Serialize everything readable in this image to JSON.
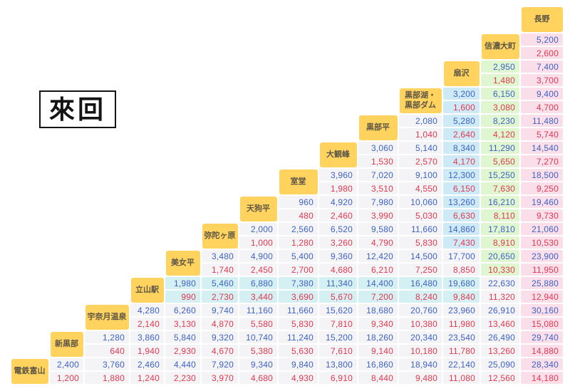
{
  "title": "來回",
  "stations": [
    "電鉄富山",
    "新黒部",
    "宇奈月温泉",
    "立山駅",
    "美女平",
    "弥陀ヶ原",
    "天狗平",
    "室堂",
    "大観峰",
    "黒部平",
    "黒部湖・\n黒部ダム",
    "扇沢",
    "信濃大町",
    "長野"
  ],
  "rows": [
    {
      "station": "長野",
      "fares": []
    },
    {
      "station": "信濃大町",
      "fares": [
        {
          "adult": "5,200",
          "child": "2,600"
        }
      ]
    },
    {
      "station": "扇沢",
      "fares": [
        {
          "adult": "2,950",
          "child": "1,480"
        },
        {
          "adult": "7,400",
          "child": "3,700"
        }
      ]
    },
    {
      "station": "黒部湖・\n黒部ダム",
      "fares": [
        {
          "adult": "3,200",
          "child": "1,600"
        },
        {
          "adult": "6,150",
          "child": "3,080"
        },
        {
          "adult": "9,400",
          "child": "4,700"
        }
      ]
    },
    {
      "station": "黒部平",
      "fares": [
        {
          "adult": "2,080",
          "child": "1,040"
        },
        {
          "adult": "5,280",
          "child": "2,640"
        },
        {
          "adult": "8,230",
          "child": "4,120"
        },
        {
          "adult": "11,480",
          "child": "5,740"
        }
      ]
    },
    {
      "station": "大観峰",
      "fares": [
        {
          "adult": "3,060",
          "child": "1,530"
        },
        {
          "adult": "5,140",
          "child": "2,570"
        },
        {
          "adult": "8,340",
          "child": "4,170"
        },
        {
          "adult": "11,290",
          "child": "5,650"
        },
        {
          "adult": "14,540",
          "child": "7,270"
        }
      ]
    },
    {
      "station": "室堂",
      "fares": [
        {
          "adult": "3,960",
          "child": "1,980"
        },
        {
          "adult": "7,020",
          "child": "3,510"
        },
        {
          "adult": "9,100",
          "child": "4,550"
        },
        {
          "adult": "12,300",
          "child": "6,150"
        },
        {
          "adult": "15,250",
          "child": "7,630"
        },
        {
          "adult": "18,500",
          "child": "9,250"
        }
      ]
    },
    {
      "station": "天狗平",
      "fares": [
        {
          "adult": "960",
          "child": "480"
        },
        {
          "adult": "4,920",
          "child": "2,460"
        },
        {
          "adult": "7,980",
          "child": "3,990"
        },
        {
          "adult": "10,060",
          "child": "5,030"
        },
        {
          "adult": "13,260",
          "child": "6,630"
        },
        {
          "adult": "16,210",
          "child": "8,110"
        },
        {
          "adult": "19,460",
          "child": "9,730"
        }
      ]
    },
    {
      "station": "弥陀ヶ原",
      "fares": [
        {
          "adult": "2,000",
          "child": "1,000"
        },
        {
          "adult": "2,560",
          "child": "1,280"
        },
        {
          "adult": "6,520",
          "child": "3,260"
        },
        {
          "adult": "9,580",
          "child": "4,790"
        },
        {
          "adult": "11,660",
          "child": "5,830"
        },
        {
          "adult": "14,860",
          "child": "7,430"
        },
        {
          "adult": "17,810",
          "child": "8,910"
        },
        {
          "adult": "21,060",
          "child": "10,530"
        }
      ]
    },
    {
      "station": "美女平",
      "fares": [
        {
          "adult": "3,480",
          "child": "1,740"
        },
        {
          "adult": "4,900",
          "child": "2,450"
        },
        {
          "adult": "5,400",
          "child": "2,700"
        },
        {
          "adult": "9,360",
          "child": "4,680"
        },
        {
          "adult": "12,420",
          "child": "6,210"
        },
        {
          "adult": "14,500",
          "child": "7,250"
        },
        {
          "adult": "17,700",
          "child": "8,850"
        },
        {
          "adult": "20,650",
          "child": "10,330"
        },
        {
          "adult": "23,900",
          "child": "11,950"
        }
      ]
    },
    {
      "station": "立山駅",
      "fares": [
        {
          "adult": "1,980",
          "child": "990"
        },
        {
          "adult": "5,460",
          "child": "2,730"
        },
        {
          "adult": "6,880",
          "child": "3,440"
        },
        {
          "adult": "7,380",
          "child": "3,690"
        },
        {
          "adult": "11,340",
          "child": "5,670"
        },
        {
          "adult": "14,400",
          "child": "7,200"
        },
        {
          "adult": "16,480",
          "child": "8,240"
        },
        {
          "adult": "19,680",
          "child": "9,840"
        },
        {
          "adult": "22,630",
          "child": "11,320"
        },
        {
          "adult": "25,880",
          "child": "12,940"
        }
      ]
    },
    {
      "station": "宇奈月温泉",
      "fares": [
        {
          "adult": "4,280",
          "child": "2,140"
        },
        {
          "adult": "6,260",
          "child": "3,130"
        },
        {
          "adult": "9,740",
          "child": "4,870"
        },
        {
          "adult": "11,160",
          "child": "5,580"
        },
        {
          "adult": "11,660",
          "child": "5,830"
        },
        {
          "adult": "15,620",
          "child": "7,810"
        },
        {
          "adult": "18,680",
          "child": "9,340"
        },
        {
          "adult": "20,760",
          "child": "10,380"
        },
        {
          "adult": "23,960",
          "child": "11,980"
        },
        {
          "adult": "26,910",
          "child": "13,460"
        },
        {
          "adult": "30,160",
          "child": "15,080"
        }
      ]
    },
    {
      "station": "新黒部",
      "fares": [
        {
          "adult": "1,280",
          "child": "640"
        },
        {
          "adult": "3,860",
          "child": "1,940"
        },
        {
          "adult": "5,840",
          "child": "2,930"
        },
        {
          "adult": "9,320",
          "child": "4,670"
        },
        {
          "adult": "10,740",
          "child": "5,380"
        },
        {
          "adult": "11,240",
          "child": "5,630"
        },
        {
          "adult": "15,200",
          "child": "7,610"
        },
        {
          "adult": "18,260",
          "child": "9,140"
        },
        {
          "adult": "20,340",
          "child": "10,180"
        },
        {
          "adult": "23,540",
          "child": "11,780"
        },
        {
          "adult": "26,490",
          "child": "13,260"
        },
        {
          "adult": "29,740",
          "child": "14,880"
        }
      ]
    },
    {
      "station": "電鉄富山",
      "fares": [
        {
          "adult": "2,400",
          "child": "1,200"
        },
        {
          "adult": "3,760",
          "child": "1,880"
        },
        {
          "adult": "2,460",
          "child": "1,240"
        },
        {
          "adult": "4,440",
          "child": "2,230"
        },
        {
          "adult": "7,920",
          "child": "3,970"
        },
        {
          "adult": "9,340",
          "child": "4,680"
        },
        {
          "adult": "9,840",
          "child": "4,930"
        },
        {
          "adult": "13,800",
          "child": "6,910"
        },
        {
          "adult": "16,860",
          "child": "8,440"
        },
        {
          "adult": "18,940",
          "child": "9,480"
        },
        {
          "adult": "22,140",
          "child": "11,080"
        },
        {
          "adult": "25,090",
          "child": "12,560"
        },
        {
          "adult": "28,340",
          "child": "14,180"
        }
      ]
    }
  ],
  "colors": {
    "header_bg": "#FFD35E",
    "header_text": "#5E5746",
    "blue_text": "#3E63C6",
    "red_text": "#E23850",
    "cell_bg": "#F4F4F6",
    "blue_bg": "#CEEAF6",
    "green_bg": "#DFF6D0",
    "pink_bg": "#FADEE9",
    "cyan_bg": "#D4F0F2",
    "title_text": "#141414"
  },
  "tints": {
    "pink_column": {
      "col": 13,
      "bands": [
        1,
        13
      ]
    },
    "green_column": {
      "col": 12,
      "bands": [
        2,
        9
      ]
    },
    "blue_column": {
      "col": 11,
      "bands": [
        3,
        8
      ]
    },
    "cyan_row": {
      "band": 10,
      "cols": [
        4,
        11
      ]
    }
  }
}
